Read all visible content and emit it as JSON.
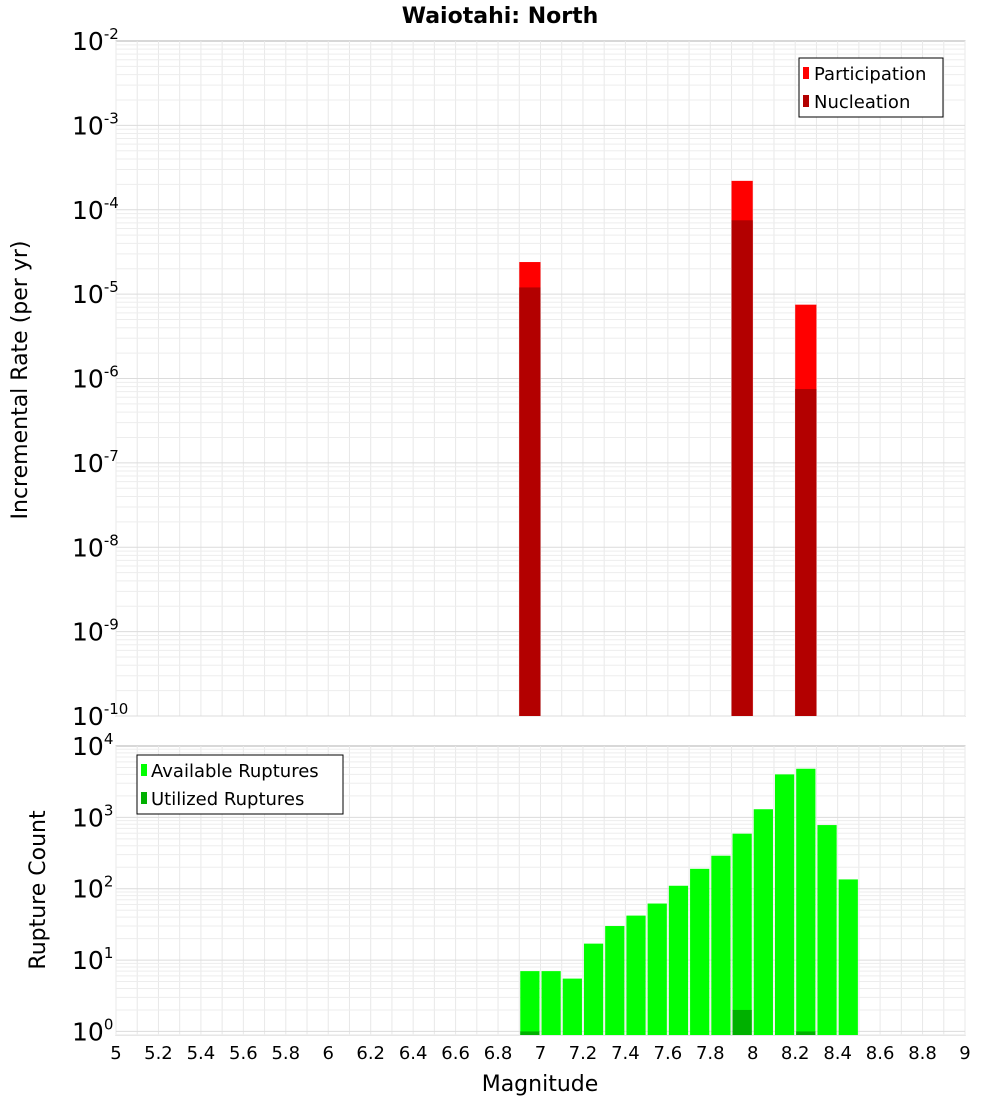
{
  "title": "Waiotahi: North",
  "chart_data": [
    {
      "type": "bar",
      "name": "rate",
      "ylabel": "Incremental Rate (per yr)",
      "xlim": [
        5,
        9
      ],
      "ylim_log10": [
        -10,
        -2
      ],
      "yscale": "log",
      "bin_width": 0.1,
      "series": [
        {
          "name": "Participation",
          "color": "#ff0000",
          "x": [
            6.95,
            7.95,
            8.25
          ],
          "values": [
            2.4e-05,
            0.00022,
            7.5e-06
          ]
        },
        {
          "name": "Nucleation",
          "color": "#b30000",
          "x": [
            6.95,
            7.95,
            8.25
          ],
          "values": [
            1.2e-05,
            7.5e-05,
            7.5e-07
          ]
        }
      ],
      "legend": "top-right",
      "grid": true
    },
    {
      "type": "bar",
      "name": "count",
      "xlabel": "Magnitude",
      "ylabel": "Rupture Count",
      "xlim": [
        5,
        9
      ],
      "ylim_log10": [
        -0.05,
        4
      ],
      "yscale": "log",
      "bin_width": 0.1,
      "series": [
        {
          "name": "Available Ruptures",
          "color": "#00ff00",
          "x": [
            6.95,
            7.05,
            7.15,
            7.25,
            7.35,
            7.45,
            7.55,
            7.65,
            7.75,
            7.85,
            7.95,
            8.05,
            8.15,
            8.25,
            8.35,
            8.45
          ],
          "values": [
            7,
            7,
            5.5,
            17,
            30,
            42,
            62,
            110,
            190,
            290,
            590,
            1300,
            4000,
            4800,
            780,
            135
          ]
        },
        {
          "name": "Utilized Ruptures",
          "color": "#00b000",
          "x": [
            6.95,
            7.95,
            8.25
          ],
          "values": [
            1,
            2,
            1
          ]
        }
      ],
      "legend": "top-left",
      "grid": true
    }
  ],
  "x_ticks": [
    "5",
    "5.2",
    "5.4",
    "5.6",
    "5.8",
    "6",
    "6.2",
    "6.4",
    "6.6",
    "6.8",
    "7",
    "7.2",
    "7.4",
    "7.6",
    "7.8",
    "8",
    "8.2",
    "8.4",
    "8.6",
    "8.8",
    "9"
  ],
  "top_y_ticks": [
    {
      "base": "10",
      "exp": "-2"
    },
    {
      "base": "10",
      "exp": "-3"
    },
    {
      "base": "10",
      "exp": "-4"
    },
    {
      "base": "10",
      "exp": "-5"
    },
    {
      "base": "10",
      "exp": "-6"
    },
    {
      "base": "10",
      "exp": "-7"
    },
    {
      "base": "10",
      "exp": "-8"
    },
    {
      "base": "10",
      "exp": "-9"
    },
    {
      "base": "10",
      "exp": "-10"
    }
  ],
  "bottom_y_ticks": [
    {
      "base": "10",
      "exp": "4"
    },
    {
      "base": "10",
      "exp": "3"
    },
    {
      "base": "10",
      "exp": "2"
    },
    {
      "base": "10",
      "exp": "1"
    },
    {
      "base": "10",
      "exp": "0"
    }
  ]
}
